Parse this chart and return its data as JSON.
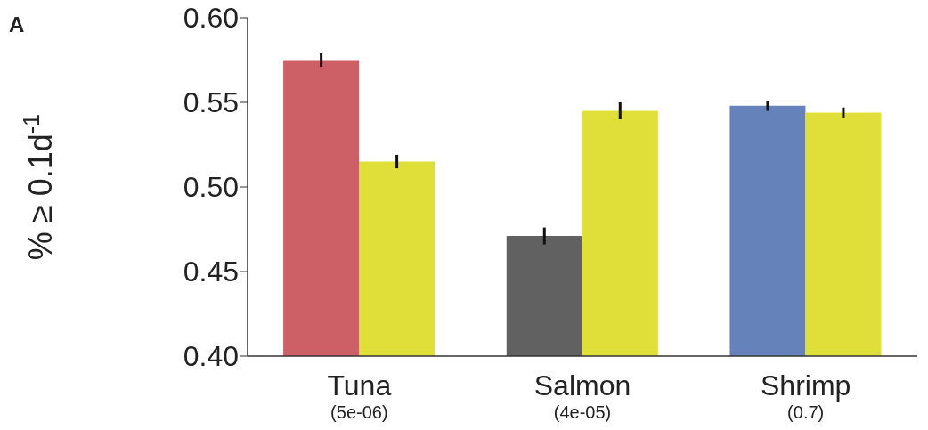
{
  "chart_data": {
    "type": "bar",
    "ylabel": "% ≥ 0.1d$^{-1}$",
    "annotations": [
      "A"
    ],
    "categories": [
      "Tuna\n(5e-06)",
      "Salmon\n(4e-05)",
      "Shrimp\n(0.7)"
    ],
    "series": [
      {
        "colors": [
          "#cd5f66",
          "#616161",
          "#6682bb"
        ],
        "values": [
          0.575,
          0.471,
          0.548
        ],
        "errors": [
          0.004,
          0.005,
          0.003
        ]
      },
      {
        "color": "#e0df3a",
        "values": [
          0.515,
          0.545,
          0.544
        ],
        "errors": [
          0.004,
          0.005,
          0.003
        ]
      }
    ],
    "ylim": [
      0.4,
      0.6
    ],
    "yticks": [
      {
        "value": 0.4,
        "label": "0.40"
      },
      0.45,
      {
        "value": 0.5,
        "label": "0.50"
      },
      0.55,
      {
        "value": 0.6,
        "label": "0.60"
      }
    ]
  }
}
